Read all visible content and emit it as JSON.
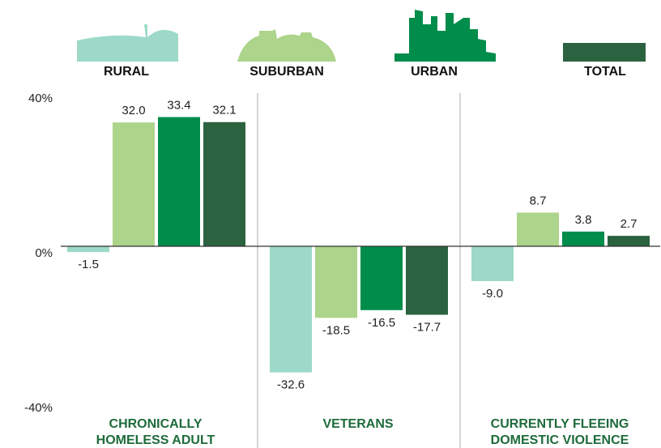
{
  "chart_data": {
    "type": "bar",
    "categories": [
      [
        "CHRONICALLY",
        "HOMELESS ADULT"
      ],
      [
        "VETERANS"
      ],
      [
        "CURRENTLY FLEEING",
        "DOMESTIC VIOLENCE"
      ]
    ],
    "series": [
      {
        "name": "RURAL",
        "color": "#9dd9c8",
        "values": [
          -1.5,
          -32.6,
          -9.0
        ],
        "value_labels": [
          "-1.5",
          "-32.6",
          "-9.0"
        ]
      },
      {
        "name": "SUBURBAN",
        "color": "#acd48a",
        "values": [
          32.0,
          -18.5,
          8.7
        ],
        "value_labels": [
          "32.0",
          "-18.5",
          "8.7"
        ]
      },
      {
        "name": "URBAN",
        "color": "#008c4a",
        "values": [
          33.4,
          -16.5,
          3.8
        ],
        "value_labels": [
          "33.4",
          "-16.5",
          "3.8"
        ]
      },
      {
        "name": "TOTAL",
        "color": "#2b6240",
        "values": [
          32.1,
          -17.7,
          2.7
        ],
        "value_labels": [
          "32.1",
          "-17.7",
          "2.7"
        ]
      }
    ],
    "ylim": [
      -40,
      40
    ],
    "yticks": [
      {
        "value": 40,
        "label": "40%"
      },
      {
        "value": 0,
        "label": "0%"
      },
      {
        "value": -40,
        "label": "-40%"
      }
    ]
  }
}
